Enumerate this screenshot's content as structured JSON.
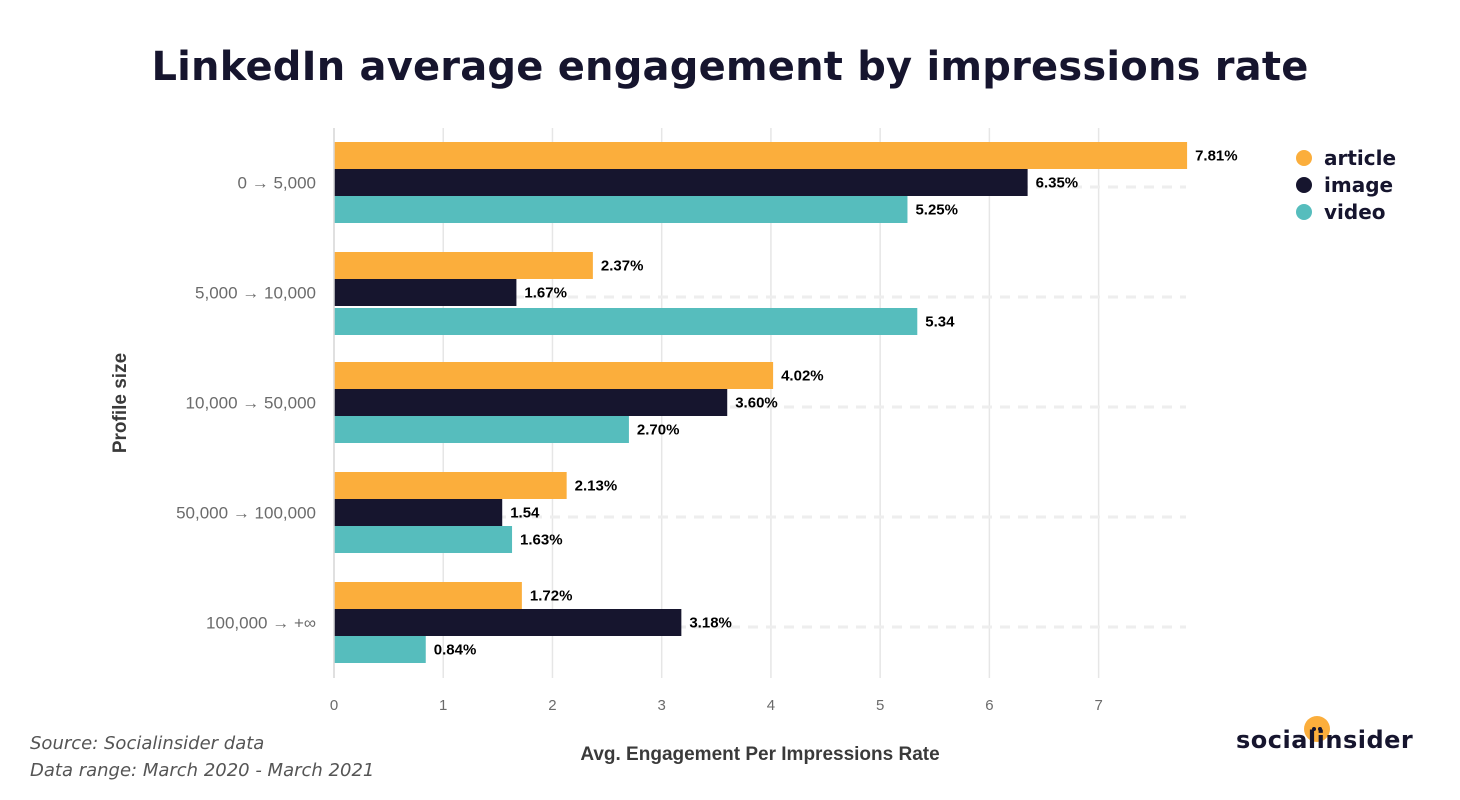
{
  "title": "LinkedIn average engagement by impressions rate",
  "footer": {
    "source": "Source: Socialinsider data",
    "range": "Data range:  March 2020 - March 2021"
  },
  "logo": {
    "text": "socialinsider"
  },
  "colors": {
    "article": "#fbae3c",
    "image": "#16152e",
    "video": "#56bdbd",
    "grid": "#e6e6e6",
    "text": "#16152e",
    "axis_text": "#6b6b6b"
  },
  "chart_data": {
    "type": "bar",
    "orientation": "horizontal",
    "title": "LinkedIn average engagement by impressions rate",
    "xlabel": "Avg. Engagement Per Impressions Rate",
    "ylabel": "Profile size",
    "xlim": [
      0,
      7.8
    ],
    "xticks": [
      "0",
      "1",
      "2",
      "3",
      "4",
      "5",
      "6",
      "7"
    ],
    "categories": [
      "0 → 5,000",
      "5,000 → 10,000",
      "10,000 → 50,000",
      "50,000 → 100,000",
      "100,000 → +∞"
    ],
    "legend_position": "top-right",
    "grid": true,
    "series": [
      {
        "name": "article",
        "color": "#fbae3c",
        "values": [
          7.81,
          2.37,
          4.02,
          2.13,
          1.72
        ],
        "labels": [
          "7.81%",
          "2.37%",
          "4.02%",
          "2.13%",
          "1.72%"
        ]
      },
      {
        "name": "image",
        "color": "#16152e",
        "values": [
          6.35,
          1.67,
          3.6,
          1.54,
          3.18
        ],
        "labels": [
          "6.35%",
          "1.67%",
          "3.60%",
          "1.54",
          "3.18%"
        ]
      },
      {
        "name": "video",
        "color": "#56bdbd",
        "values": [
          5.25,
          5.34,
          2.7,
          1.63,
          0.84
        ],
        "labels": [
          "5.25%",
          "5.34",
          "2.70%",
          "1.63%",
          "0.84%"
        ]
      }
    ]
  }
}
